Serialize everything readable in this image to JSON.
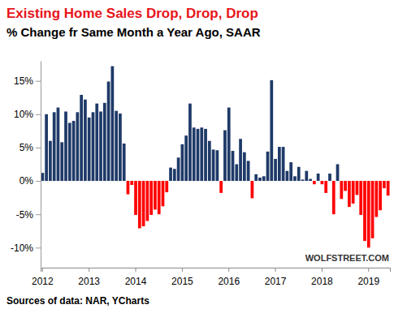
{
  "chart_data": {
    "type": "bar",
    "title": "Existing Home Sales Drop, Drop, Drop",
    "subtitle": "% Change fr Same Month a Year Ago, SAAR",
    "annotations": [
      "WOLFSTREET.COM",
      "Sources of data: NAR, YCharts"
    ],
    "categories": [
      "2012",
      null,
      null,
      null,
      null,
      null,
      null,
      null,
      null,
      null,
      null,
      null,
      "2013",
      null,
      null,
      null,
      null,
      null,
      null,
      null,
      null,
      null,
      null,
      null,
      "2014",
      null,
      null,
      null,
      null,
      null,
      null,
      null,
      null,
      null,
      null,
      null,
      "2015",
      null,
      null,
      null,
      null,
      null,
      null,
      null,
      null,
      null,
      null,
      null,
      "2016",
      null,
      null,
      null,
      null,
      null,
      null,
      null,
      null,
      null,
      null,
      null,
      "2017",
      null,
      null,
      null,
      null,
      null,
      null,
      null,
      null,
      null,
      null,
      null,
      "2018",
      null,
      null,
      null,
      null,
      null,
      null,
      null,
      null,
      null,
      null,
      null,
      "2019",
      null,
      null,
      null,
      null,
      null
    ],
    "values": [
      1.2,
      10,
      6,
      10.3,
      11,
      5.8,
      10.4,
      8.7,
      9,
      10.3,
      12.9,
      12.2,
      9.5,
      10.3,
      11.6,
      10.4,
      11.7,
      14.9,
      17.2,
      10.5,
      10.1,
      5.6,
      -2,
      -0.6,
      -5.1,
      -7.1,
      -6.8,
      -6,
      -5.1,
      -4.3,
      -5,
      -3.8,
      -1.7,
      2,
      1.8,
      3.5,
      5.5,
      6.8,
      11.6,
      8,
      7.8,
      8,
      7.8,
      6,
      4.7,
      4.6,
      -1.8,
      7.6,
      11,
      4.5,
      2.5,
      6.3,
      4.3,
      3,
      -2.6,
      1,
      0.5,
      0.7,
      4.4,
      15.1,
      3.3,
      5.1,
      5.1,
      1.5,
      2.8,
      0.7,
      2.1,
      0.2,
      1.5,
      0.3,
      -0.5,
      1.1,
      -0.5,
      -1.8,
      1.1,
      -5,
      2.5,
      -2.7,
      -1.5,
      -3.9,
      -3.4,
      -2.1,
      -5.1,
      -9,
      -10,
      -8.6,
      -5.4,
      -4.4,
      -1.1,
      -2.2
    ],
    "colors": [
      "#1f3a68",
      "#1f3a68",
      "#1f3a68",
      "#1f3a68",
      "#1f3a68",
      "#1f3a68",
      "#1f3a68",
      "#1f3a68",
      "#1f3a68",
      "#1f3a68",
      "#1f3a68",
      "#1f3a68",
      "#1f3a68",
      "#1f3a68",
      "#1f3a68",
      "#1f3a68",
      "#1f3a68",
      "#1f3a68",
      "#1f3a68",
      "#1f3a68",
      "#1f3a68",
      "#1f3a68",
      "#ff0000",
      "#ff0000",
      "#ff0000",
      "#ff0000",
      "#ff0000",
      "#ff0000",
      "#ff0000",
      "#ff0000",
      "#ff0000",
      "#ff0000",
      "#ff0000",
      "#1f3a68",
      "#1f3a68",
      "#1f3a68",
      "#1f3a68",
      "#1f3a68",
      "#1f3a68",
      "#1f3a68",
      "#1f3a68",
      "#1f3a68",
      "#1f3a68",
      "#1f3a68",
      "#1f3a68",
      "#1f3a68",
      "#ff0000",
      "#1f3a68",
      "#1f3a68",
      "#1f3a68",
      "#1f3a68",
      "#1f3a68",
      "#1f3a68",
      "#1f3a68",
      "#ff0000",
      "#1f3a68",
      "#1f3a68",
      "#1f3a68",
      "#1f3a68",
      "#1f3a68",
      "#1f3a68",
      "#1f3a68",
      "#1f3a68",
      "#1f3a68",
      "#1f3a68",
      "#1f3a68",
      "#1f3a68",
      "#1f3a68",
      "#1f3a68",
      "#1f3a68",
      "#ff0000",
      "#1f3a68",
      "#ff0000",
      "#ff0000",
      "#1f3a68",
      "#ff0000",
      "#1f3a68",
      "#ff0000",
      "#ff0000",
      "#ff0000",
      "#ff0000",
      "#ff0000",
      "#ff0000",
      "#ff0000",
      "#ff0000",
      "#ff0000",
      "#ff0000",
      "#ff0000",
      "#ff0000",
      "#ff0000"
    ],
    "ylim": [
      -13,
      18
    ],
    "yticks": [
      {
        "value": -10,
        "label": "-10%"
      },
      {
        "value": -5,
        "label": "-5%"
      },
      {
        "value": 0,
        "label": "0%"
      },
      {
        "value": 5,
        "label": "5%"
      },
      {
        "value": 10,
        "label": "10%"
      },
      {
        "value": 15,
        "label": "15%"
      }
    ],
    "grid": false
  }
}
